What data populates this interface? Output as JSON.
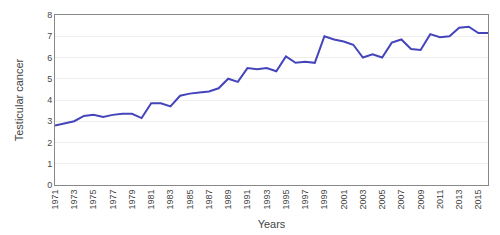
{
  "chart_data": {
    "type": "line",
    "x": [
      1971,
      1972,
      1973,
      1974,
      1975,
      1976,
      1977,
      1978,
      1979,
      1980,
      1981,
      1982,
      1983,
      1984,
      1985,
      1986,
      1987,
      1988,
      1989,
      1990,
      1991,
      1992,
      1993,
      1994,
      1995,
      1996,
      1997,
      1998,
      1999,
      2000,
      2001,
      2002,
      2003,
      2004,
      2005,
      2006,
      2007,
      2008,
      2009,
      2010,
      2011,
      2012,
      2013,
      2014,
      2015,
      2016
    ],
    "values": [
      2.8,
      2.9,
      3.0,
      3.25,
      3.3,
      3.2,
      3.3,
      3.35,
      3.35,
      3.15,
      3.85,
      3.85,
      3.7,
      4.2,
      4.3,
      4.35,
      4.4,
      4.55,
      5.0,
      4.85,
      5.5,
      5.45,
      5.5,
      5.35,
      6.05,
      5.75,
      5.8,
      5.75,
      7.0,
      6.85,
      6.75,
      6.6,
      6.0,
      6.15,
      6.0,
      6.7,
      6.85,
      6.4,
      6.35,
      7.1,
      6.95,
      7.0,
      7.4,
      7.45,
      7.15,
      7.15
    ],
    "color": "#4444bb",
    "xlabel": "Years",
    "ylabel": "Testicular cancer",
    "xlim": [
      1971,
      2016
    ],
    "xticks": [
      1971,
      1973,
      1975,
      1977,
      1979,
      1981,
      1983,
      1985,
      1987,
      1989,
      1991,
      1993,
      1995,
      1997,
      1999,
      2001,
      2003,
      2005,
      2007,
      2009,
      2011,
      2013,
      2015
    ],
    "ylim": [
      0,
      8
    ],
    "yticks": [
      0,
      1,
      2,
      3,
      4,
      5,
      6,
      7,
      8
    ],
    "grid": "y"
  }
}
